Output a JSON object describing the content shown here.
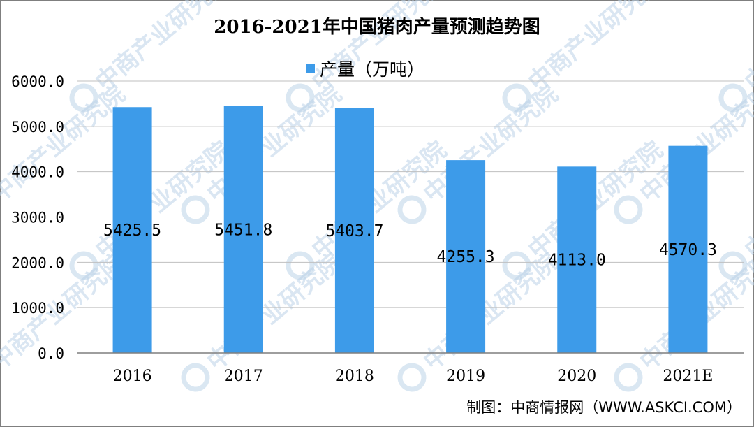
{
  "watermark": "中商产业研究院",
  "source": "制图：中商情报网（WWW.ASKCI.COM）",
  "colors": {
    "bar": "#3d9be9",
    "grid": "#bfbfbf",
    "axis": "#7f7f7f"
  },
  "chart_data": {
    "type": "bar",
    "title": "2016-2021年中国猪肉产量预测趋势图",
    "categories": [
      "2016",
      "2017",
      "2018",
      "2019",
      "2020",
      "2021E"
    ],
    "series": [
      {
        "name": "产量（万吨）",
        "values": [
          5425.5,
          5451.8,
          5403.7,
          4255.3,
          4113.0,
          4570.3
        ]
      }
    ],
    "data_labels": [
      "5425.5",
      "5451.8",
      "5403.7",
      "4255.3",
      "4113.0",
      "4570.3"
    ],
    "yticks": [
      "0.0",
      "1000.0",
      "2000.0",
      "3000.0",
      "4000.0",
      "5000.0",
      "6000.0"
    ],
    "ylim": [
      0,
      6000
    ],
    "grid": true,
    "legend": "top-center"
  }
}
